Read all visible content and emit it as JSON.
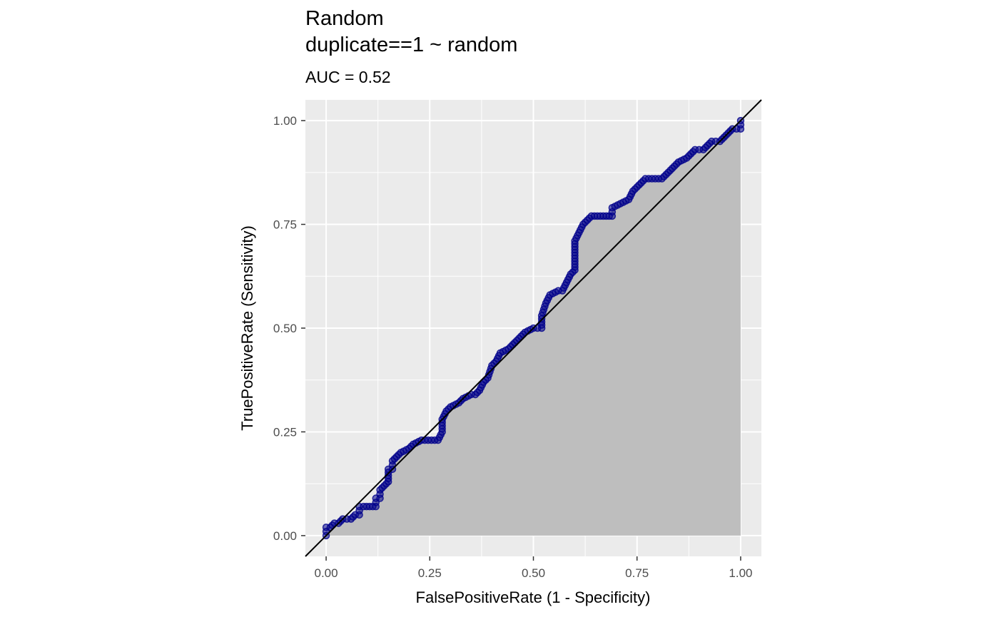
{
  "chart_data": {
    "type": "line",
    "title": [
      "Random",
      "duplicate==1 ~ random"
    ],
    "subtitle": "AUC = 0.52",
    "xlabel": "FalsePositiveRate (1 - Specificity)",
    "ylabel": "TruePositiveRate (Sensitivity)",
    "xlim": [
      -0.05,
      1.05
    ],
    "ylim": [
      -0.05,
      1.05
    ],
    "xticks": [
      0,
      0.25,
      0.5,
      0.75,
      1
    ],
    "xtick_labels": [
      "0.00",
      "0.25",
      "0.50",
      "0.75",
      "1.00"
    ],
    "yticks": [
      0,
      0.25,
      0.5,
      0.75,
      1
    ],
    "ytick_labels": [
      "0.00",
      "0.25",
      "0.50",
      "0.75",
      "1.00"
    ],
    "grid": true,
    "panel_background": "#EBEBEB",
    "area_fill_color": "#BEBEBE",
    "roc_point_color": "#00008B",
    "reference_line": {
      "from": [
        0,
        0
      ],
      "to": [
        1,
        1
      ],
      "color": "#000000"
    },
    "series": [
      {
        "values_xy": [
          [
            0.0,
            0.0
          ],
          [
            0.0,
            0.02
          ],
          [
            0.01,
            0.02
          ],
          [
            0.02,
            0.03
          ],
          [
            0.03,
            0.03
          ],
          [
            0.04,
            0.04
          ],
          [
            0.06,
            0.04
          ],
          [
            0.07,
            0.05
          ],
          [
            0.08,
            0.05
          ],
          [
            0.08,
            0.07
          ],
          [
            0.09,
            0.07
          ],
          [
            0.12,
            0.07
          ],
          [
            0.12,
            0.09
          ],
          [
            0.13,
            0.09
          ],
          [
            0.13,
            0.11
          ],
          [
            0.14,
            0.12
          ],
          [
            0.15,
            0.13
          ],
          [
            0.15,
            0.16
          ],
          [
            0.16,
            0.16
          ],
          [
            0.16,
            0.18
          ],
          [
            0.17,
            0.19
          ],
          [
            0.18,
            0.2
          ],
          [
            0.2,
            0.21
          ],
          [
            0.21,
            0.22
          ],
          [
            0.23,
            0.23
          ],
          [
            0.27,
            0.23
          ],
          [
            0.28,
            0.25
          ],
          [
            0.28,
            0.28
          ],
          [
            0.29,
            0.3
          ],
          [
            0.3,
            0.31
          ],
          [
            0.32,
            0.32
          ],
          [
            0.33,
            0.33
          ],
          [
            0.35,
            0.34
          ],
          [
            0.36,
            0.34
          ],
          [
            0.37,
            0.35
          ],
          [
            0.38,
            0.37
          ],
          [
            0.39,
            0.38
          ],
          [
            0.4,
            0.41
          ],
          [
            0.41,
            0.42
          ],
          [
            0.42,
            0.44
          ],
          [
            0.44,
            0.45
          ],
          [
            0.45,
            0.46
          ],
          [
            0.46,
            0.47
          ],
          [
            0.47,
            0.48
          ],
          [
            0.48,
            0.49
          ],
          [
            0.5,
            0.5
          ],
          [
            0.52,
            0.5
          ],
          [
            0.52,
            0.53
          ],
          [
            0.53,
            0.56
          ],
          [
            0.54,
            0.58
          ],
          [
            0.56,
            0.59
          ],
          [
            0.57,
            0.59
          ],
          [
            0.58,
            0.61
          ],
          [
            0.59,
            0.63
          ],
          [
            0.6,
            0.64
          ],
          [
            0.6,
            0.71
          ],
          [
            0.61,
            0.73
          ],
          [
            0.62,
            0.75
          ],
          [
            0.63,
            0.76
          ],
          [
            0.64,
            0.77
          ],
          [
            0.69,
            0.77
          ],
          [
            0.69,
            0.79
          ],
          [
            0.71,
            0.8
          ],
          [
            0.73,
            0.81
          ],
          [
            0.74,
            0.83
          ],
          [
            0.75,
            0.84
          ],
          [
            0.76,
            0.85
          ],
          [
            0.77,
            0.86
          ],
          [
            0.81,
            0.86
          ],
          [
            0.82,
            0.87
          ],
          [
            0.83,
            0.88
          ],
          [
            0.84,
            0.89
          ],
          [
            0.85,
            0.9
          ],
          [
            0.87,
            0.91
          ],
          [
            0.88,
            0.92
          ],
          [
            0.89,
            0.93
          ],
          [
            0.91,
            0.93
          ],
          [
            0.92,
            0.94
          ],
          [
            0.93,
            0.95
          ],
          [
            0.95,
            0.95
          ],
          [
            0.96,
            0.96
          ],
          [
            0.97,
            0.97
          ],
          [
            0.98,
            0.98
          ],
          [
            1.0,
            0.98
          ],
          [
            1.0,
            1.0
          ]
        ]
      }
    ]
  }
}
